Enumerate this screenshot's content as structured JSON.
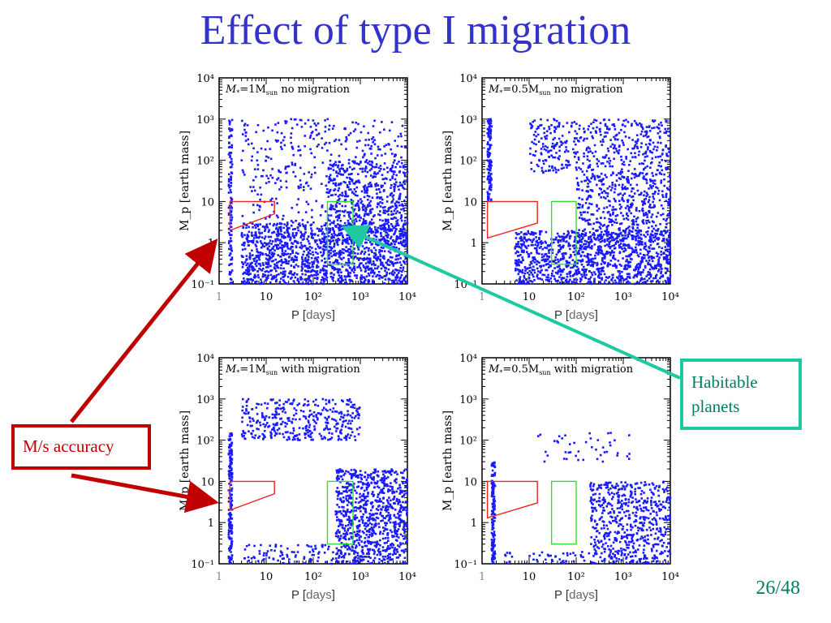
{
  "slide": {
    "title": "Effect of type I migration",
    "page_number": "26/48",
    "callout_ms": "M/s accuracy",
    "callout_habitable_line1": "Habitable",
    "callout_habitable_line2": "planets"
  },
  "colors": {
    "title": "#3333cc",
    "points": "#1a1aff",
    "ms_box": "#ee2222",
    "habitable_box": "#33dd33",
    "arrow_red": "#c00000",
    "arrow_teal": "#1ec8a0"
  },
  "axes": {
    "xlabel_prefix": "P [",
    "xlabel_unit": "days",
    "xlabel_suffix": "]",
    "ylabel": "M_p [earth mass]",
    "xlim": [
      1,
      10000
    ],
    "ylim": [
      0.1,
      10000
    ],
    "scale": "log-log",
    "x_ticks": [
      "1",
      "10",
      "10²",
      "10³",
      "10⁴"
    ],
    "y_ticks": [
      "10⁻¹",
      "1",
      "10",
      "10²",
      "10³",
      "10⁴"
    ]
  },
  "chart_data": [
    {
      "type": "scatter",
      "title": "M*=1Msun no migration",
      "title_main": "M",
      "title_sub1": "*",
      "title_eq": "=1M",
      "title_sub2": "sun",
      "title_rest": " no migration",
      "stellar_mass": 1,
      "migration": false,
      "ms_region": {
        "P": [
          1.7,
          15
        ],
        "M_top": [
          10,
          10
        ],
        "M_bottom": [
          2,
          5
        ]
      },
      "habitable_region": {
        "P": [
          200,
          700
        ],
        "M": [
          0.3,
          10
        ]
      },
      "point_clusters": [
        {
          "P": [
            1.6,
            1.9
          ],
          "M": [
            0.1,
            1000
          ],
          "n": 120
        },
        {
          "P": [
            3,
            10000
          ],
          "M": [
            0.1,
            3
          ],
          "n": 1400
        },
        {
          "P": [
            3,
            10000
          ],
          "M": [
            3,
            1000
          ],
          "n": 420
        },
        {
          "P": [
            200,
            10000
          ],
          "M": [
            1,
            100
          ],
          "n": 500
        }
      ]
    },
    {
      "type": "scatter",
      "title": "M*=0.5Msun no migration",
      "title_main": "M",
      "title_sub1": "*",
      "title_eq": "=0.5M",
      "title_sub2": "sun",
      "title_rest": " no migration",
      "stellar_mass": 0.5,
      "migration": false,
      "ms_region": {
        "P": [
          1.3,
          15
        ],
        "M_top": [
          10,
          10
        ],
        "M_bottom": [
          1.3,
          3
        ]
      },
      "habitable_region": {
        "P": [
          30,
          100
        ],
        "M": [
          0.3,
          10
        ]
      },
      "point_clusters": [
        {
          "P": [
            1.3,
            1.6
          ],
          "M": [
            10,
            1000
          ],
          "n": 120
        },
        {
          "P": [
            5,
            10000
          ],
          "M": [
            0.1,
            2
          ],
          "n": 1100
        },
        {
          "P": [
            10,
            10000
          ],
          "M": [
            50,
            1000
          ],
          "n": 450
        },
        {
          "P": [
            100,
            10000
          ],
          "M": [
            1,
            50
          ],
          "n": 500
        }
      ]
    },
    {
      "type": "scatter",
      "title": "M*=1Msun with migration",
      "title_main": "M",
      "title_sub1": "*",
      "title_eq": "=1M",
      "title_sub2": "sun",
      "title_rest": " with migration",
      "stellar_mass": 1,
      "migration": true,
      "ms_region": {
        "P": [
          1.7,
          15
        ],
        "M_top": [
          10,
          10
        ],
        "M_bottom": [
          2,
          5
        ]
      },
      "habitable_region": {
        "P": [
          200,
          700
        ],
        "M": [
          0.3,
          10
        ]
      },
      "point_clusters": [
        {
          "P": [
            1.6,
            1.9
          ],
          "M": [
            0.1,
            150
          ],
          "n": 180
        },
        {
          "P": [
            3,
            1000
          ],
          "M": [
            100,
            1000
          ],
          "n": 380
        },
        {
          "P": [
            300,
            10000
          ],
          "M": [
            0.1,
            20
          ],
          "n": 900
        },
        {
          "P": [
            3,
            300
          ],
          "M": [
            0.1,
            0.3
          ],
          "n": 90
        }
      ]
    },
    {
      "type": "scatter",
      "title": "M*=0.5Msun with migration",
      "title_main": "M",
      "title_sub1": "*",
      "title_eq": "=0.5M",
      "title_sub2": "sun",
      "title_rest": " with migration",
      "stellar_mass": 0.5,
      "migration": true,
      "ms_region": {
        "P": [
          1.3,
          15
        ],
        "M_top": [
          10,
          10
        ],
        "M_bottom": [
          1.3,
          3
        ]
      },
      "habitable_region": {
        "P": [
          30,
          100
        ],
        "M": [
          0.3,
          10
        ]
      },
      "point_clusters": [
        {
          "P": [
            1.6,
            1.9
          ],
          "M": [
            0.1,
            30
          ],
          "n": 160
        },
        {
          "P": [
            200,
            10000
          ],
          "M": [
            0.1,
            10
          ],
          "n": 600
        },
        {
          "P": [
            15,
            1500
          ],
          "M": [
            30,
            150
          ],
          "n": 45
        },
        {
          "P": [
            3,
            300
          ],
          "M": [
            0.1,
            0.2
          ],
          "n": 50
        }
      ]
    }
  ]
}
